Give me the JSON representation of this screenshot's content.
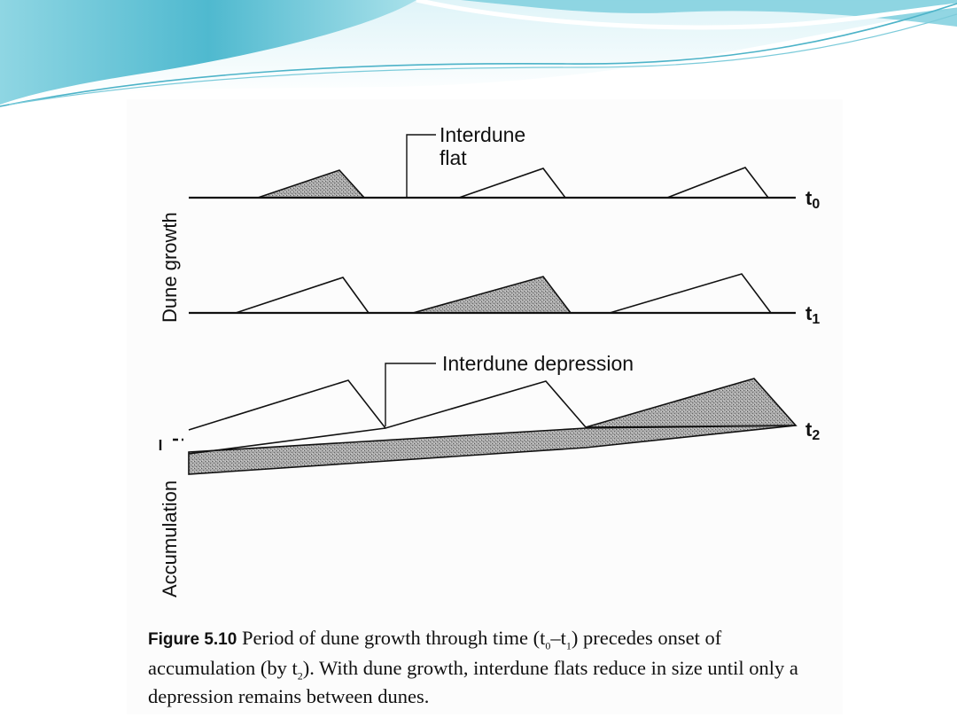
{
  "diagram": {
    "labels": {
      "interdune_flat_line1": "Interdune",
      "interdune_flat_line2": "flat",
      "interdune_depression": "Interdune depression",
      "dune_growth_axis": "Dune growth",
      "accumulation_axis": "Accumulation"
    },
    "time_labels": {
      "t0": {
        "main": "t",
        "sub": "0"
      },
      "t1": {
        "main": "t",
        "sub": "1"
      },
      "t2": {
        "main": "t",
        "sub": "2"
      }
    }
  },
  "caption": {
    "figure_label": "Figure 5.10",
    "seg1": " Period of dune growth through time (t",
    "sub0": "0",
    "seg2": "–t",
    "sub1": "1",
    "seg3": ") precedes onset of accumulation (by t",
    "sub2": "2",
    "seg4": "). With dune growth, interdune flats reduce in size until only a depression remains between dunes."
  },
  "colors": {
    "decor_teal": "#5fc4d6",
    "decor_light": "#bfe8f0",
    "figure_background": "#fcfcfc",
    "dune_fill": "#8f8f8f",
    "ink": "#111111"
  }
}
